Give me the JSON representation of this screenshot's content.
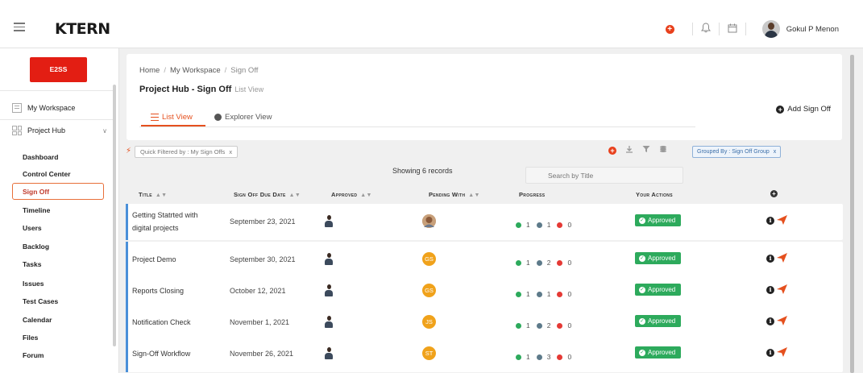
{
  "topbar": {
    "logo": "KTERN",
    "user_name": "Gokul P Menon",
    "icons": [
      "menu-icon",
      "add-icon",
      "bell-icon",
      "calendar-icon"
    ],
    "accent_color": "#e8401c"
  },
  "sidebar": {
    "project_button": "E2SS",
    "my_workspace": "My Workspace",
    "project_hub": "Project Hub",
    "items": [
      "Dashboard",
      "Control Center",
      "Sign Off",
      "Timeline",
      "Users",
      "Backlog",
      "Tasks",
      "Issues",
      "Test Cases",
      "Calendar",
      "Files",
      "Forum"
    ],
    "active_item": "Sign Off"
  },
  "breadcrumb": {
    "home": "Home",
    "workspace": "My Workspace",
    "current": "Sign Off",
    "separator": "/"
  },
  "page": {
    "title": "Project Hub - Sign Off",
    "subtitle": "List View",
    "tabs": [
      "List View",
      "Explorer View"
    ],
    "active_tab": "List View",
    "add_button": "Add Sign Off"
  },
  "filters": {
    "quick_filter": "Quick Filtered by : My Sign Offs",
    "chip_close": "x",
    "group_by": "Grouped By : Sign Off Group",
    "showing": "Showing 6 records",
    "search_placeholder": "Search by Title"
  },
  "table": {
    "columns": [
      "Title",
      "Sign Off Due Date",
      "Approved",
      "Pending With",
      "Progress",
      "Your Actions"
    ],
    "rows": [
      {
        "title_line1": "Getting Statrted with",
        "title_line2": "digital projects",
        "date": "September 23, 2021",
        "pending": "",
        "p_green": "1",
        "p_gray": "1",
        "p_red": "0",
        "status": "Approved"
      },
      {
        "title_line1": "Project Demo",
        "title_line2": "",
        "date": "September 30, 2021",
        "pending": "GS",
        "p_green": "1",
        "p_gray": "2",
        "p_red": "0",
        "status": "Approved"
      },
      {
        "title_line1": "Reports Closing",
        "title_line2": "",
        "date": "October 12, 2021",
        "pending": "GS",
        "p_green": "1",
        "p_gray": "1",
        "p_red": "0",
        "status": "Approved"
      },
      {
        "title_line1": "Notification Check",
        "title_line2": "",
        "date": "November 1, 2021",
        "pending": "JS",
        "p_green": "1",
        "p_gray": "2",
        "p_red": "0",
        "status": "Approved"
      },
      {
        "title_line1": "Sign-Off Workflow",
        "title_line2": "",
        "date": "November 26, 2021",
        "pending": "ST",
        "p_green": "1",
        "p_gray": "3",
        "p_red": "0",
        "status": "Approved"
      }
    ]
  },
  "colors": {
    "green": "#2daa5c",
    "gray": "#5d7a8a",
    "red": "#e53935",
    "row_bar": "#4a90d9",
    "pending_avatar": "#f0a21b",
    "send_icon": "#e5501e"
  }
}
